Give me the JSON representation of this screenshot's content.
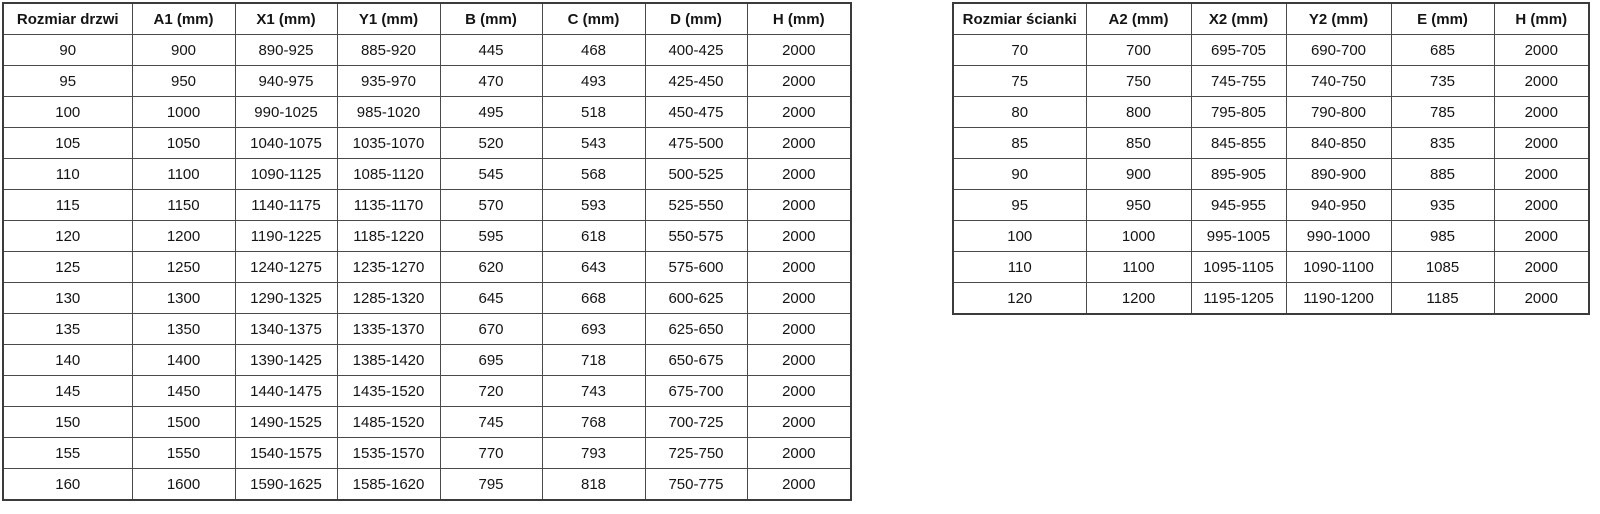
{
  "page": {
    "background_color": "#ffffff",
    "text_color": "#141414",
    "border_color": "#4a4a4a"
  },
  "door_table": {
    "headers": [
      "Rozmiar drzwi",
      "A1 (mm)",
      "X1 (mm)",
      "Y1 (mm)",
      "B (mm)",
      "C (mm)",
      "D (mm)",
      "H (mm)"
    ],
    "rows": [
      [
        "90",
        "900",
        "890-925",
        "885-920",
        "445",
        "468",
        "400-425",
        "2000"
      ],
      [
        "95",
        "950",
        "940-975",
        "935-970",
        "470",
        "493",
        "425-450",
        "2000"
      ],
      [
        "100",
        "1000",
        "990-1025",
        "985-1020",
        "495",
        "518",
        "450-475",
        "2000"
      ],
      [
        "105",
        "1050",
        "1040-1075",
        "1035-1070",
        "520",
        "543",
        "475-500",
        "2000"
      ],
      [
        "110",
        "1100",
        "1090-1125",
        "1085-1120",
        "545",
        "568",
        "500-525",
        "2000"
      ],
      [
        "115",
        "1150",
        "1140-1175",
        "1135-1170",
        "570",
        "593",
        "525-550",
        "2000"
      ],
      [
        "120",
        "1200",
        "1190-1225",
        "1185-1220",
        "595",
        "618",
        "550-575",
        "2000"
      ],
      [
        "125",
        "1250",
        "1240-1275",
        "1235-1270",
        "620",
        "643",
        "575-600",
        "2000"
      ],
      [
        "130",
        "1300",
        "1290-1325",
        "1285-1320",
        "645",
        "668",
        "600-625",
        "2000"
      ],
      [
        "135",
        "1350",
        "1340-1375",
        "1335-1370",
        "670",
        "693",
        "625-650",
        "2000"
      ],
      [
        "140",
        "1400",
        "1390-1425",
        "1385-1420",
        "695",
        "718",
        "650-675",
        "2000"
      ],
      [
        "145",
        "1450",
        "1440-1475",
        "1435-1520",
        "720",
        "743",
        "675-700",
        "2000"
      ],
      [
        "150",
        "1500",
        "1490-1525",
        "1485-1520",
        "745",
        "768",
        "700-725",
        "2000"
      ],
      [
        "155",
        "1550",
        "1540-1575",
        "1535-1570",
        "770",
        "793",
        "725-750",
        "2000"
      ],
      [
        "160",
        "1600",
        "1590-1625",
        "1585-1620",
        "795",
        "818",
        "750-775",
        "2000"
      ]
    ]
  },
  "wall_table": {
    "headers": [
      "Rozmiar ścianki",
      "A2 (mm)",
      "X2 (mm)",
      "Y2 (mm)",
      "E (mm)",
      "H (mm)"
    ],
    "rows": [
      [
        "70",
        "700",
        "695-705",
        "690-700",
        "685",
        "2000"
      ],
      [
        "75",
        "750",
        "745-755",
        "740-750",
        "735",
        "2000"
      ],
      [
        "80",
        "800",
        "795-805",
        "790-800",
        "785",
        "2000"
      ],
      [
        "85",
        "850",
        "845-855",
        "840-850",
        "835",
        "2000"
      ],
      [
        "90",
        "900",
        "895-905",
        "890-900",
        "885",
        "2000"
      ],
      [
        "95",
        "950",
        "945-955",
        "940-950",
        "935",
        "2000"
      ],
      [
        "100",
        "1000",
        "995-1005",
        "990-1000",
        "985",
        "2000"
      ],
      [
        "110",
        "1100",
        "1095-1105",
        "1090-1100",
        "1085",
        "2000"
      ],
      [
        "120",
        "1200",
        "1195-1205",
        "1190-1200",
        "1185",
        "2000"
      ]
    ]
  }
}
